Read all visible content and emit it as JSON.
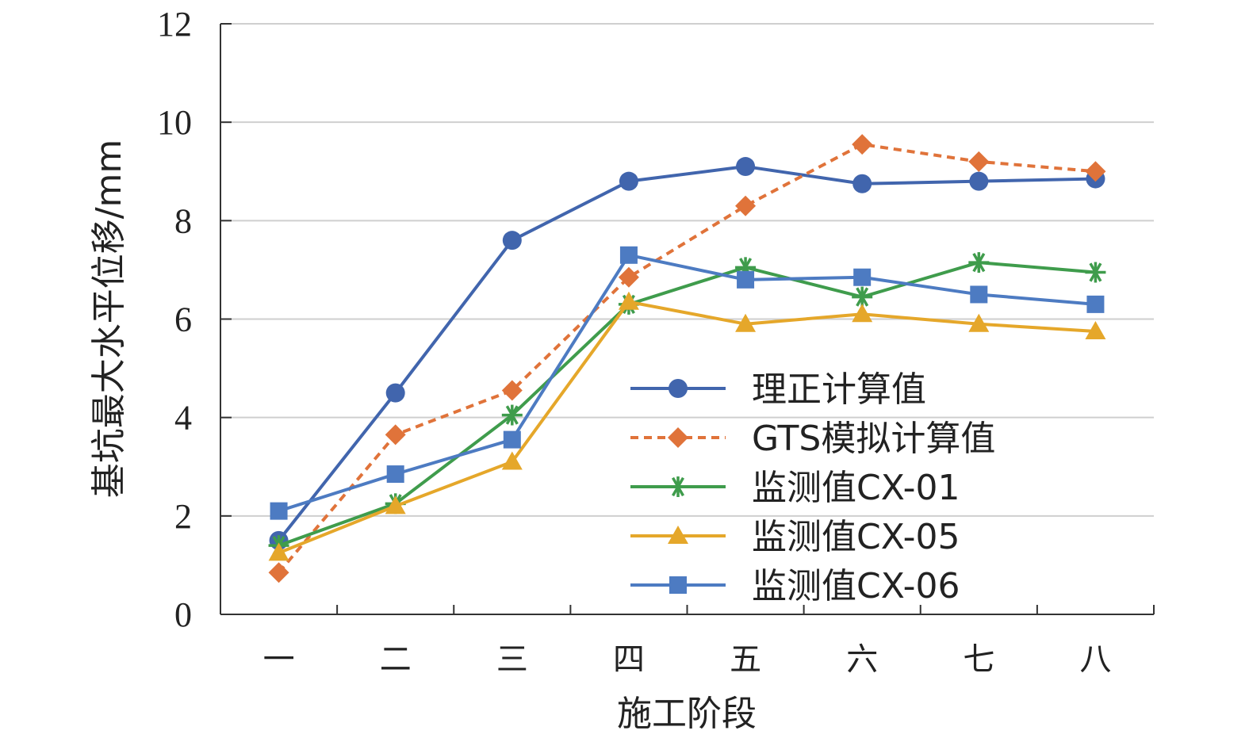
{
  "chart_data": {
    "type": "line",
    "title": "",
    "xlabel": "施工阶段",
    "ylabel": "基坑最大水平位移/mm",
    "ylim": [
      0,
      12
    ],
    "yticks": [
      0,
      2,
      4,
      6,
      8,
      10,
      12
    ],
    "grid": "horizontal",
    "legend_position": "lower-right",
    "categories": [
      "一",
      "二",
      "三",
      "四",
      "五",
      "六",
      "七",
      "八"
    ],
    "series": [
      {
        "name": "理正计算值",
        "color": "#4165ad",
        "marker": "circle",
        "line": "solid",
        "values": [
          1.5,
          4.5,
          7.6,
          8.8,
          9.1,
          8.75,
          8.8,
          8.85
        ]
      },
      {
        "name": "GTS模拟计算值",
        "color": "#e0733a",
        "marker": "diamond",
        "line": "dashed",
        "values": [
          0.85,
          3.65,
          4.55,
          6.85,
          8.3,
          9.55,
          9.2,
          9.0
        ]
      },
      {
        "name": "监测值CX-01",
        "color": "#3f9c4c",
        "marker": "asterisk",
        "line": "solid",
        "values": [
          1.4,
          2.25,
          4.05,
          6.3,
          7.05,
          6.45,
          7.15,
          6.95
        ]
      },
      {
        "name": "监测值CX-05",
        "color": "#e5a72a",
        "marker": "triangle",
        "line": "solid",
        "values": [
          1.25,
          2.2,
          3.1,
          6.35,
          5.9,
          6.1,
          5.9,
          5.75
        ]
      },
      {
        "name": "监测值CX-06",
        "color": "#4d7bc2",
        "marker": "square",
        "line": "solid",
        "values": [
          2.1,
          2.85,
          3.55,
          7.3,
          6.8,
          6.85,
          6.5,
          6.3
        ]
      }
    ]
  }
}
